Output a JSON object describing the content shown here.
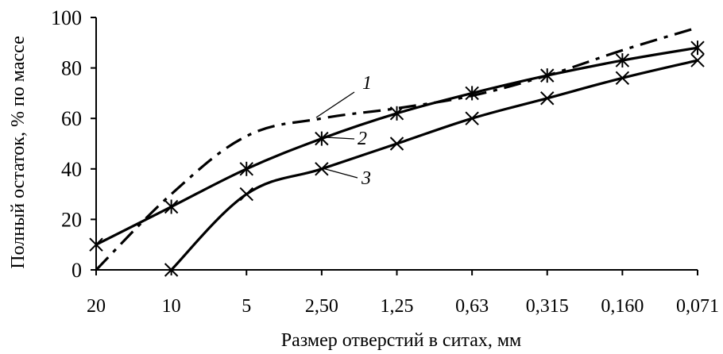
{
  "chart_data": {
    "type": "line",
    "categories": [
      "20",
      "10",
      "5",
      "2,50",
      "1,25",
      "0,63",
      "0,315",
      "0,160",
      "0,071"
    ],
    "xlabel": "Размер отверстий в ситах, мм",
    "ylabel": "Полный остаток, % по массе",
    "ylim": [
      0,
      100
    ],
    "yticks": [
      "0",
      "20",
      "40",
      "60",
      "80",
      "100"
    ],
    "grid": false,
    "series": [
      {
        "name": "1",
        "style": "dash-dot",
        "marker": "none",
        "color": "#000000",
        "values": [
          0,
          30,
          53,
          60,
          64,
          69,
          77,
          87,
          96
        ]
      },
      {
        "name": "2",
        "style": "solid",
        "marker": "asterisk",
        "color": "#000000",
        "values": [
          10,
          25,
          40,
          52,
          62,
          70,
          77,
          83,
          88
        ]
      },
      {
        "name": "3",
        "style": "solid",
        "marker": "x",
        "color": "#000000",
        "values": [
          null,
          0,
          30,
          40,
          50,
          60,
          68,
          76,
          83
        ]
      }
    ]
  }
}
